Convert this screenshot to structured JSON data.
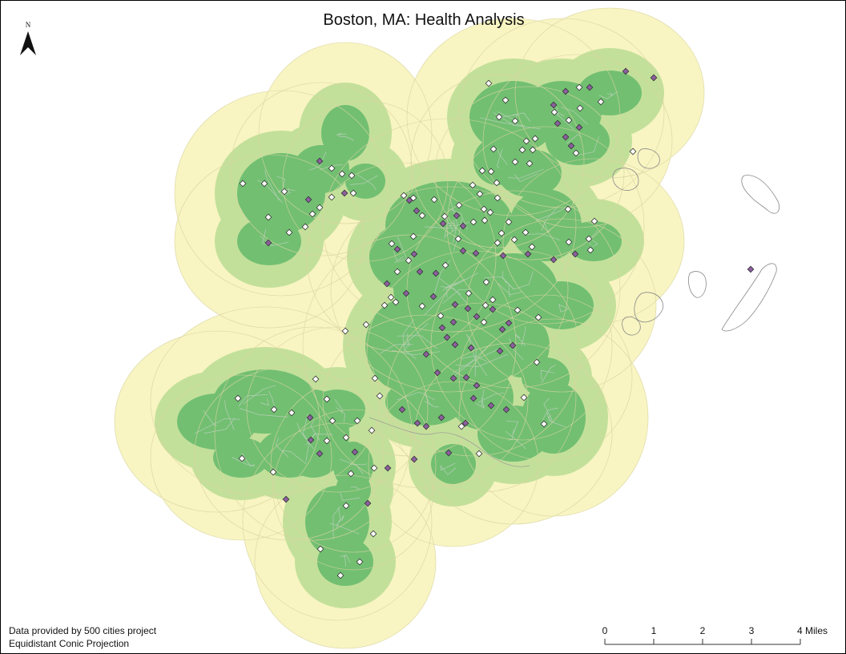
{
  "title": "Boston, MA: Health Analysis",
  "north_arrow": {
    "icon": "north-arrow-icon",
    "label": "N"
  },
  "credits": {
    "source": "Data provided by 500 cities project",
    "projection": "Equidistant Conic Projection"
  },
  "scale_bar": {
    "labels": [
      "0",
      "1",
      "2",
      "3",
      "4 Miles"
    ]
  },
  "colors": {
    "outer_buffer": "#f8f5c2",
    "middle_buffer": "#c3e09a",
    "inner_buffer": "#72bf72",
    "tract_lines": "#b8cfb8",
    "outline": "#8a8a8a",
    "point_light": "#ffffff",
    "point_dark": "#8c5fa0"
  }
}
